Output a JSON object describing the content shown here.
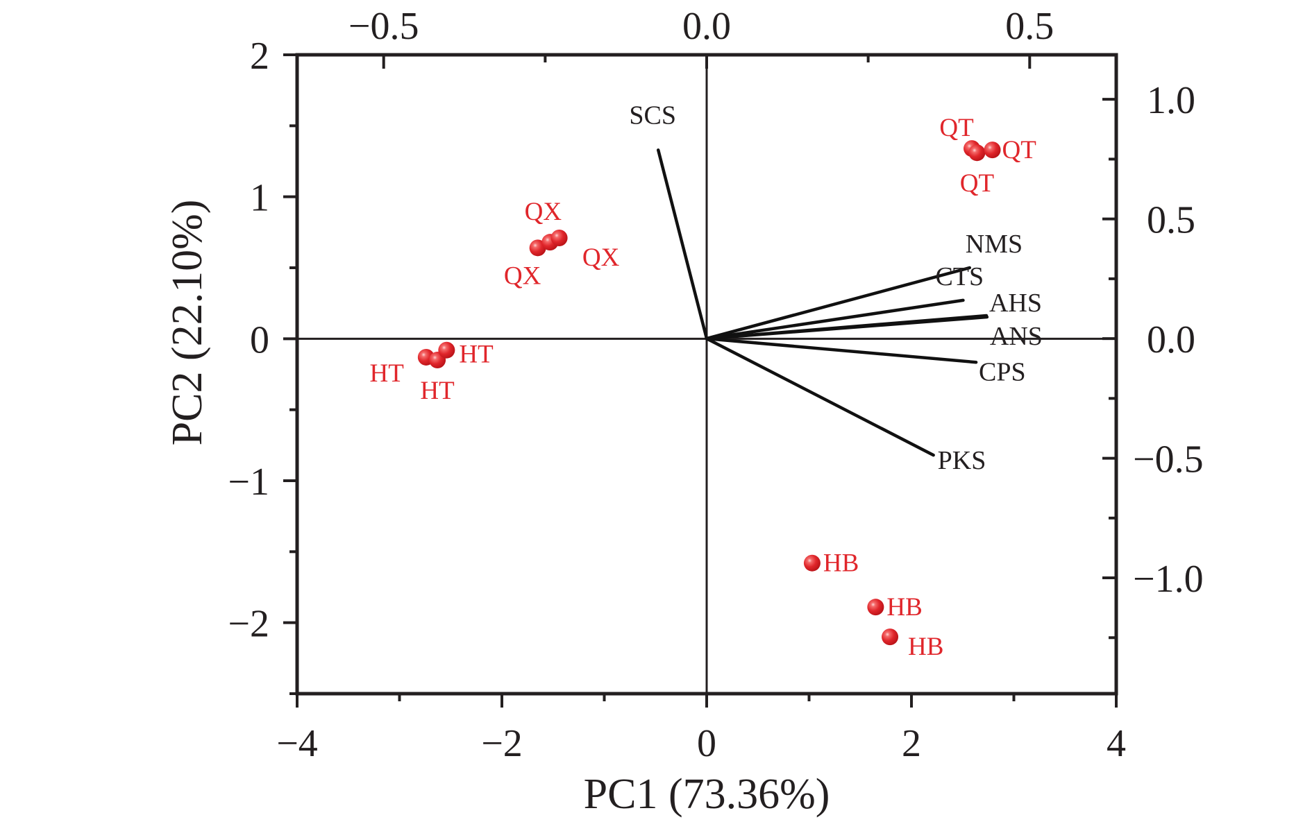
{
  "chart_data": {
    "type": "scatter",
    "subtype": "pca-biplot",
    "title": "",
    "xlabel": "PC1 (73.36%)",
    "ylabel": "PC2 (22.10%)",
    "xlim": [
      -4,
      4
    ],
    "ylim": [
      -2.5,
      2
    ],
    "x_ticks": [
      {
        "value": -4,
        "label": "−4"
      },
      {
        "value": -2,
        "label": "−2"
      },
      {
        "value": 0,
        "label": "0"
      },
      {
        "value": 2,
        "label": "2"
      },
      {
        "value": 4,
        "label": "4"
      }
    ],
    "x_minor_step": 1,
    "y_ticks": [
      {
        "value": 2,
        "label": "2"
      },
      {
        "value": 1,
        "label": "1"
      },
      {
        "value": 0,
        "label": "0"
      },
      {
        "value": -1,
        "label": "−1"
      },
      {
        "value": -2,
        "label": "−2"
      }
    ],
    "y_minor_step": 0.5,
    "secondary_xlim": [
      -0.634,
      0.634
    ],
    "secondary_x_ticks": [
      {
        "value": -0.5,
        "label": "−0.5"
      },
      {
        "value": 0.0,
        "label": "0.0"
      },
      {
        "value": 0.5,
        "label": "0.5"
      }
    ],
    "secondary_x_minor_step": 0.25,
    "secondary_ylim": [
      -1.484,
      1.186
    ],
    "secondary_y_ticks": [
      {
        "value": 1.0,
        "label": "1.0"
      },
      {
        "value": 0.5,
        "label": "0.5"
      },
      {
        "value": 0.0,
        "label": "0.0"
      },
      {
        "value": -0.5,
        "label": "−0.5"
      },
      {
        "value": -1.0,
        "label": "−1.0"
      }
    ],
    "secondary_y_minor_step": 0.25,
    "zero_lines": true,
    "grid": false,
    "legend": "none",
    "colors": {
      "axes": "#231f20",
      "scores": "#e0262b",
      "loadings": "#111111"
    },
    "scores": [
      {
        "group": "HT",
        "label": "HT",
        "x": -2.74,
        "y": -0.13,
        "label_anchor": "left"
      },
      {
        "group": "HT",
        "label": "HT",
        "x": -2.63,
        "y": -0.15,
        "label_anchor": "below"
      },
      {
        "group": "HT",
        "label": "HT",
        "x": -2.54,
        "y": -0.08,
        "label_anchor": "right"
      },
      {
        "group": "QX",
        "label": "QX",
        "x": -1.65,
        "y": 0.64,
        "label_anchor": "below-left"
      },
      {
        "group": "QX",
        "label": "QX",
        "x": -1.53,
        "y": 0.68,
        "label_anchor": "above"
      },
      {
        "group": "QX",
        "label": "QX",
        "x": -1.44,
        "y": 0.71,
        "label_anchor": "below-right"
      },
      {
        "group": "QT",
        "label": "QT",
        "x": 2.59,
        "y": 1.34,
        "label_anchor": "above-left"
      },
      {
        "group": "QT",
        "label": "QT",
        "x": 2.64,
        "y": 1.31,
        "label_anchor": "below"
      },
      {
        "group": "QT",
        "label": "QT",
        "x": 2.79,
        "y": 1.33,
        "label_anchor": "right"
      },
      {
        "group": "HB",
        "label": "HB",
        "x": 1.03,
        "y": -1.58,
        "label_anchor": "right"
      },
      {
        "group": "HB",
        "label": "HB",
        "x": 1.65,
        "y": -1.89,
        "label_anchor": "right"
      },
      {
        "group": "HB",
        "label": "HB",
        "x": 1.79,
        "y": -2.1,
        "label_anchor": "below-right"
      }
    ],
    "loadings": [
      {
        "label": "SCS",
        "x": -0.075,
        "y": 0.788
      },
      {
        "label": "NMS",
        "x": 0.407,
        "y": 0.296
      },
      {
        "label": "CTS",
        "x": 0.397,
        "y": 0.16
      },
      {
        "label": "AHS",
        "x": 0.433,
        "y": 0.096
      },
      {
        "label": "ANS",
        "x": 0.434,
        "y": 0.09
      },
      {
        "label": "CPS",
        "x": 0.417,
        "y": -0.099
      },
      {
        "label": "PKS",
        "x": 0.351,
        "y": -0.487
      }
    ]
  }
}
